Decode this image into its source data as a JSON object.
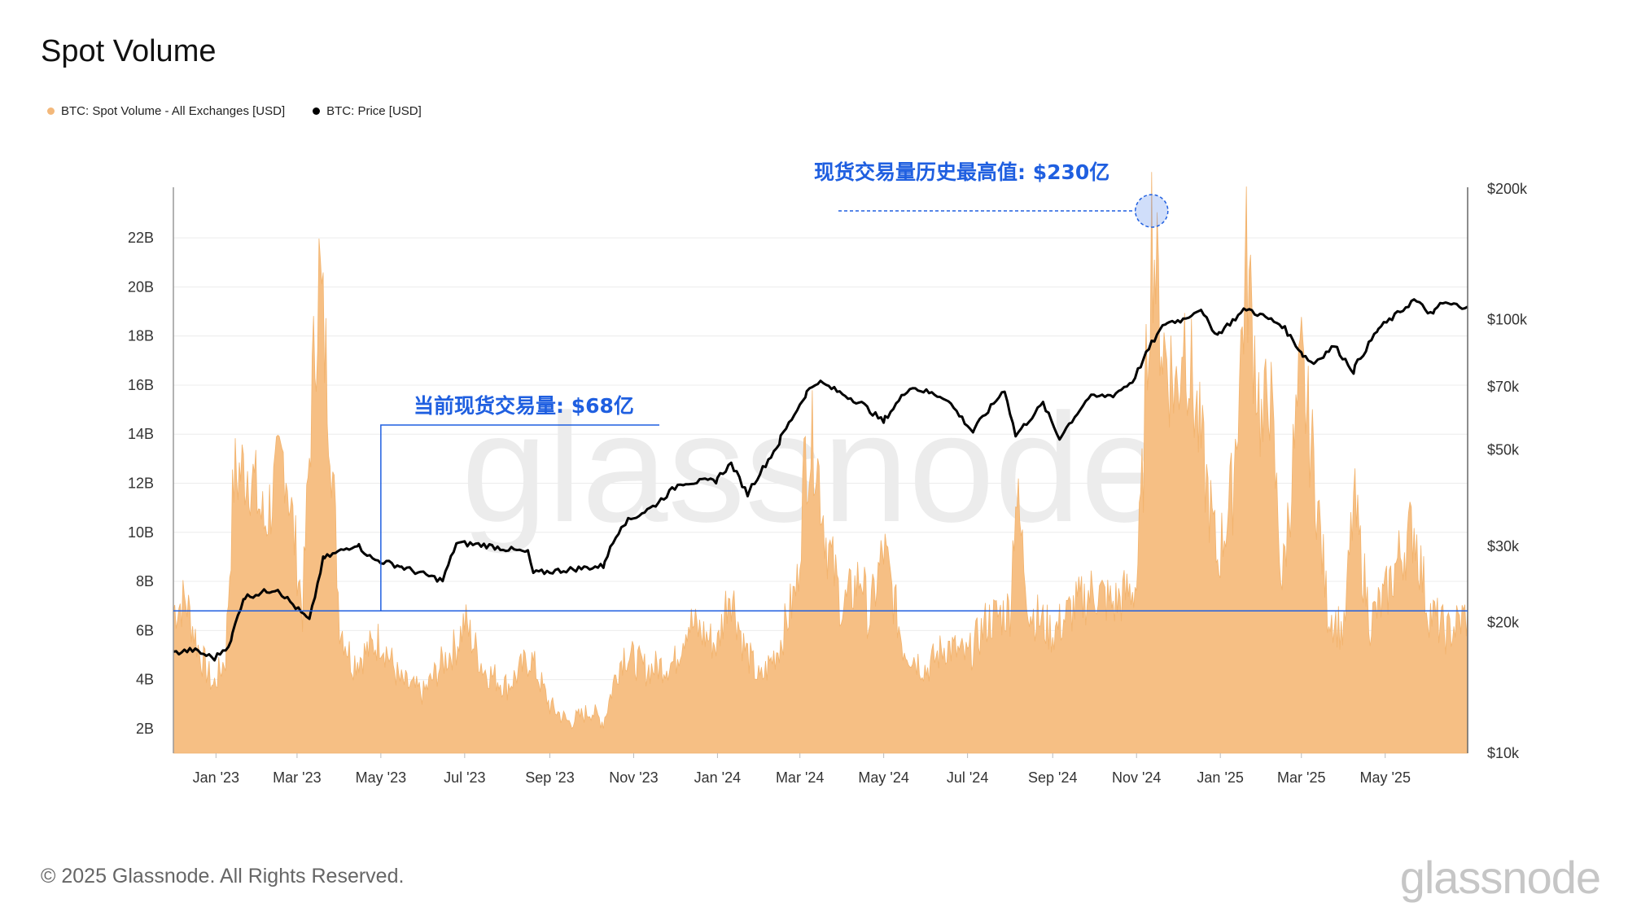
{
  "title": "Spot Volume",
  "legend": {
    "volume_label": "BTC: Spot Volume - All Exchanges [USD]",
    "price_label": "BTC: Price [USD]"
  },
  "footer": "© 2025 Glassnode. All Rights Reserved.",
  "brand": "glassnode",
  "watermark": "glassnode",
  "colors": {
    "volume": "#f6bf84",
    "volume_dot": "#f3b87a",
    "price": "#000000",
    "annotation": "#1f5fe0"
  },
  "chart_data": {
    "type": "area",
    "title": "Spot Volume",
    "left_axis": {
      "label": "",
      "ticks": [
        "2B",
        "4B",
        "6B",
        "8B",
        "10B",
        "12B",
        "14B",
        "16B",
        "18B",
        "20B",
        "22B"
      ],
      "range": [
        1000000000,
        23000000000
      ]
    },
    "right_axis": {
      "label": "",
      "scale": "log",
      "ticks": [
        "$10k",
        "$20k",
        "$30k",
        "$50k",
        "$70k",
        "$100k",
        "$200k"
      ],
      "range": [
        10000,
        200000
      ]
    },
    "x_ticks": [
      "Jan '23",
      "Mar '23",
      "May '23",
      "Jul '23",
      "Sep '23",
      "Nov '23",
      "Jan '24",
      "Mar '24",
      "May '24",
      "Jul '24",
      "Sep '24",
      "Nov '24",
      "Jan '25",
      "Mar '25",
      "May '25"
    ],
    "x_range": [
      "2022-12-01",
      "2025-06-30"
    ],
    "grid": true,
    "series": [
      {
        "name": "BTC: Spot Volume - All Exchanges [USD]",
        "axis": "left",
        "points": [
          [
            "2022-12-01",
            7000000000.0
          ],
          [
            "2022-12-10",
            7400000000.0
          ],
          [
            "2022-12-20",
            5200000000.0
          ],
          [
            "2022-12-30",
            3800000000.0
          ],
          [
            "2023-01-08",
            5000000000.0
          ],
          [
            "2023-01-14",
            12500000000.0
          ],
          [
            "2023-01-25",
            13000000000.0
          ],
          [
            "2023-02-05",
            10500000000.0
          ],
          [
            "2023-02-20",
            13500000000.0
          ],
          [
            "2023-03-05",
            7000000000.0
          ],
          [
            "2023-03-12",
            16000000000.0
          ],
          [
            "2023-03-17",
            21000000000.0
          ],
          [
            "2023-03-25",
            15000000000.0
          ],
          [
            "2023-04-01",
            6500000000.0
          ],
          [
            "2023-04-10",
            4800000000.0
          ],
          [
            "2023-04-20",
            5200000000.0
          ],
          [
            "2023-05-01",
            5800000000.0
          ],
          [
            "2023-05-15",
            4000000000.0
          ],
          [
            "2023-06-01",
            3500000000.0
          ],
          [
            "2023-06-15",
            4800000000.0
          ],
          [
            "2023-06-25",
            5500000000.0
          ],
          [
            "2023-07-01",
            6500000000.0
          ],
          [
            "2023-07-15",
            4500000000.0
          ],
          [
            "2023-08-01",
            3800000000.0
          ],
          [
            "2023-08-18",
            5000000000.0
          ],
          [
            "2023-09-01",
            3000000000.0
          ],
          [
            "2023-09-15",
            2300000000.0
          ],
          [
            "2023-10-01",
            2800000000.0
          ],
          [
            "2023-10-10",
            2300000000.0
          ],
          [
            "2023-10-20",
            4500000000.0
          ],
          [
            "2023-10-25",
            5200000000.0
          ],
          [
            "2023-11-10",
            4500000000.0
          ],
          [
            "2023-12-01",
            4800000000.0
          ],
          [
            "2023-12-10",
            6500000000.0
          ],
          [
            "2024-01-01",
            5500000000.0
          ],
          [
            "2024-01-10",
            8000000000.0
          ],
          [
            "2024-01-20",
            5500000000.0
          ],
          [
            "2024-02-01",
            4000000000.0
          ],
          [
            "2024-02-15",
            5500000000.0
          ],
          [
            "2024-02-28",
            8000000000.0
          ],
          [
            "2024-03-05",
            13500000000.0
          ],
          [
            "2024-03-12",
            14000000000.0
          ],
          [
            "2024-03-20",
            10000000000.0
          ],
          [
            "2024-04-01",
            7000000000.0
          ],
          [
            "2024-04-15",
            8500000000.0
          ],
          [
            "2024-04-20",
            6500000000.0
          ],
          [
            "2024-05-01",
            9500000000.0
          ],
          [
            "2024-05-15",
            5500000000.0
          ],
          [
            "2024-06-01",
            4500000000.0
          ],
          [
            "2024-06-15",
            5500000000.0
          ],
          [
            "2024-07-01",
            5000000000.0
          ],
          [
            "2024-07-15",
            6500000000.0
          ],
          [
            "2024-08-01",
            7000000000.0
          ],
          [
            "2024-08-05",
            12000000000.0
          ],
          [
            "2024-08-15",
            7000000000.0
          ],
          [
            "2024-09-01",
            6000000000.0
          ],
          [
            "2024-09-15",
            7000000000.0
          ],
          [
            "2024-10-01",
            7800000000.0
          ],
          [
            "2024-10-15",
            7200000000.0
          ],
          [
            "2024-11-01",
            8000000000.0
          ],
          [
            "2024-11-06",
            13000000000.0
          ],
          [
            "2024-11-12",
            23000000000.0
          ],
          [
            "2024-11-20",
            18000000000.0
          ],
          [
            "2024-12-01",
            16000000000.0
          ],
          [
            "2024-12-05",
            19000000000.0
          ],
          [
            "2024-12-15",
            15000000000.0
          ],
          [
            "2024-12-30",
            9000000000.0
          ],
          [
            "2025-01-10",
            12000000000.0
          ],
          [
            "2025-01-20",
            21500000000.0
          ],
          [
            "2025-02-01",
            14000000000.0
          ],
          [
            "2025-02-05",
            17000000000.0
          ],
          [
            "2025-02-15",
            8000000000.0
          ],
          [
            "2025-03-01",
            17000000000.0
          ],
          [
            "2025-03-10",
            13000000000.0
          ],
          [
            "2025-03-20",
            7000000000.0
          ],
          [
            "2025-04-01",
            6000000000.0
          ],
          [
            "2025-04-08",
            11500000000.0
          ],
          [
            "2025-04-20",
            6500000000.0
          ],
          [
            "2025-05-01",
            7500000000.0
          ],
          [
            "2025-05-10",
            9000000000.0
          ],
          [
            "2025-05-22",
            10500000000.0
          ],
          [
            "2025-06-01",
            7000000000.0
          ],
          [
            "2025-06-15",
            6000000000.0
          ],
          [
            "2025-06-30",
            6800000000.0
          ]
        ]
      },
      {
        "name": "BTC: Price [USD]",
        "axis": "right",
        "points": [
          [
            "2022-12-01",
            17000
          ],
          [
            "2022-12-15",
            17300
          ],
          [
            "2022-12-31",
            16550
          ],
          [
            "2023-01-12",
            18000
          ],
          [
            "2023-01-21",
            22800
          ],
          [
            "2023-02-15",
            24000
          ],
          [
            "2023-03-10",
            20200
          ],
          [
            "2023-03-20",
            28000
          ],
          [
            "2023-04-14",
            30400
          ],
          [
            "2023-04-25",
            28000
          ],
          [
            "2023-05-15",
            27000
          ],
          [
            "2023-06-15",
            25000
          ],
          [
            "2023-06-25",
            30500
          ],
          [
            "2023-07-15",
            30200
          ],
          [
            "2023-08-16",
            29000
          ],
          [
            "2023-08-20",
            26000
          ],
          [
            "2023-09-15",
            26500
          ],
          [
            "2023-10-10",
            27000
          ],
          [
            "2023-10-23",
            33500
          ],
          [
            "2023-11-15",
            37000
          ],
          [
            "2023-12-05",
            42000
          ],
          [
            "2023-12-31",
            42500
          ],
          [
            "2024-01-11",
            46500
          ],
          [
            "2024-01-23",
            39500
          ],
          [
            "2024-02-15",
            52000
          ],
          [
            "2024-03-05",
            67000
          ],
          [
            "2024-03-14",
            72000
          ],
          [
            "2024-04-15",
            64000
          ],
          [
            "2024-05-01",
            58000
          ],
          [
            "2024-05-20",
            70000
          ],
          [
            "2024-06-15",
            66000
          ],
          [
            "2024-07-05",
            55000
          ],
          [
            "2024-07-28",
            69000
          ],
          [
            "2024-08-05",
            54000
          ],
          [
            "2024-08-25",
            64000
          ],
          [
            "2024-09-06",
            53000
          ],
          [
            "2024-09-27",
            66000
          ],
          [
            "2024-10-15",
            67000
          ],
          [
            "2024-10-29",
            72000
          ],
          [
            "2024-11-12",
            88000
          ],
          [
            "2024-11-22",
            98000
          ],
          [
            "2024-12-05",
            100000
          ],
          [
            "2024-12-17",
            106000
          ],
          [
            "2024-12-30",
            92000
          ],
          [
            "2025-01-20",
            106000
          ],
          [
            "2025-02-15",
            97000
          ],
          [
            "2025-03-01",
            84000
          ],
          [
            "2025-03-10",
            79000
          ],
          [
            "2025-03-25",
            87000
          ],
          [
            "2025-04-08",
            76000
          ],
          [
            "2025-04-25",
            94000
          ],
          [
            "2025-05-10",
            103000
          ],
          [
            "2025-05-22",
            111000
          ],
          [
            "2025-06-05",
            102000
          ],
          [
            "2025-06-10",
            109000
          ],
          [
            "2025-06-30",
            107000
          ]
        ]
      }
    ],
    "annotations": [
      {
        "text": "现货交易量历史最高值: $230亿",
        "value_b": 23.0,
        "date": "2024-11-12"
      },
      {
        "text": "当前现货交易量: $68亿",
        "value_b": 6.8,
        "date": "2023-05-01"
      }
    ]
  }
}
